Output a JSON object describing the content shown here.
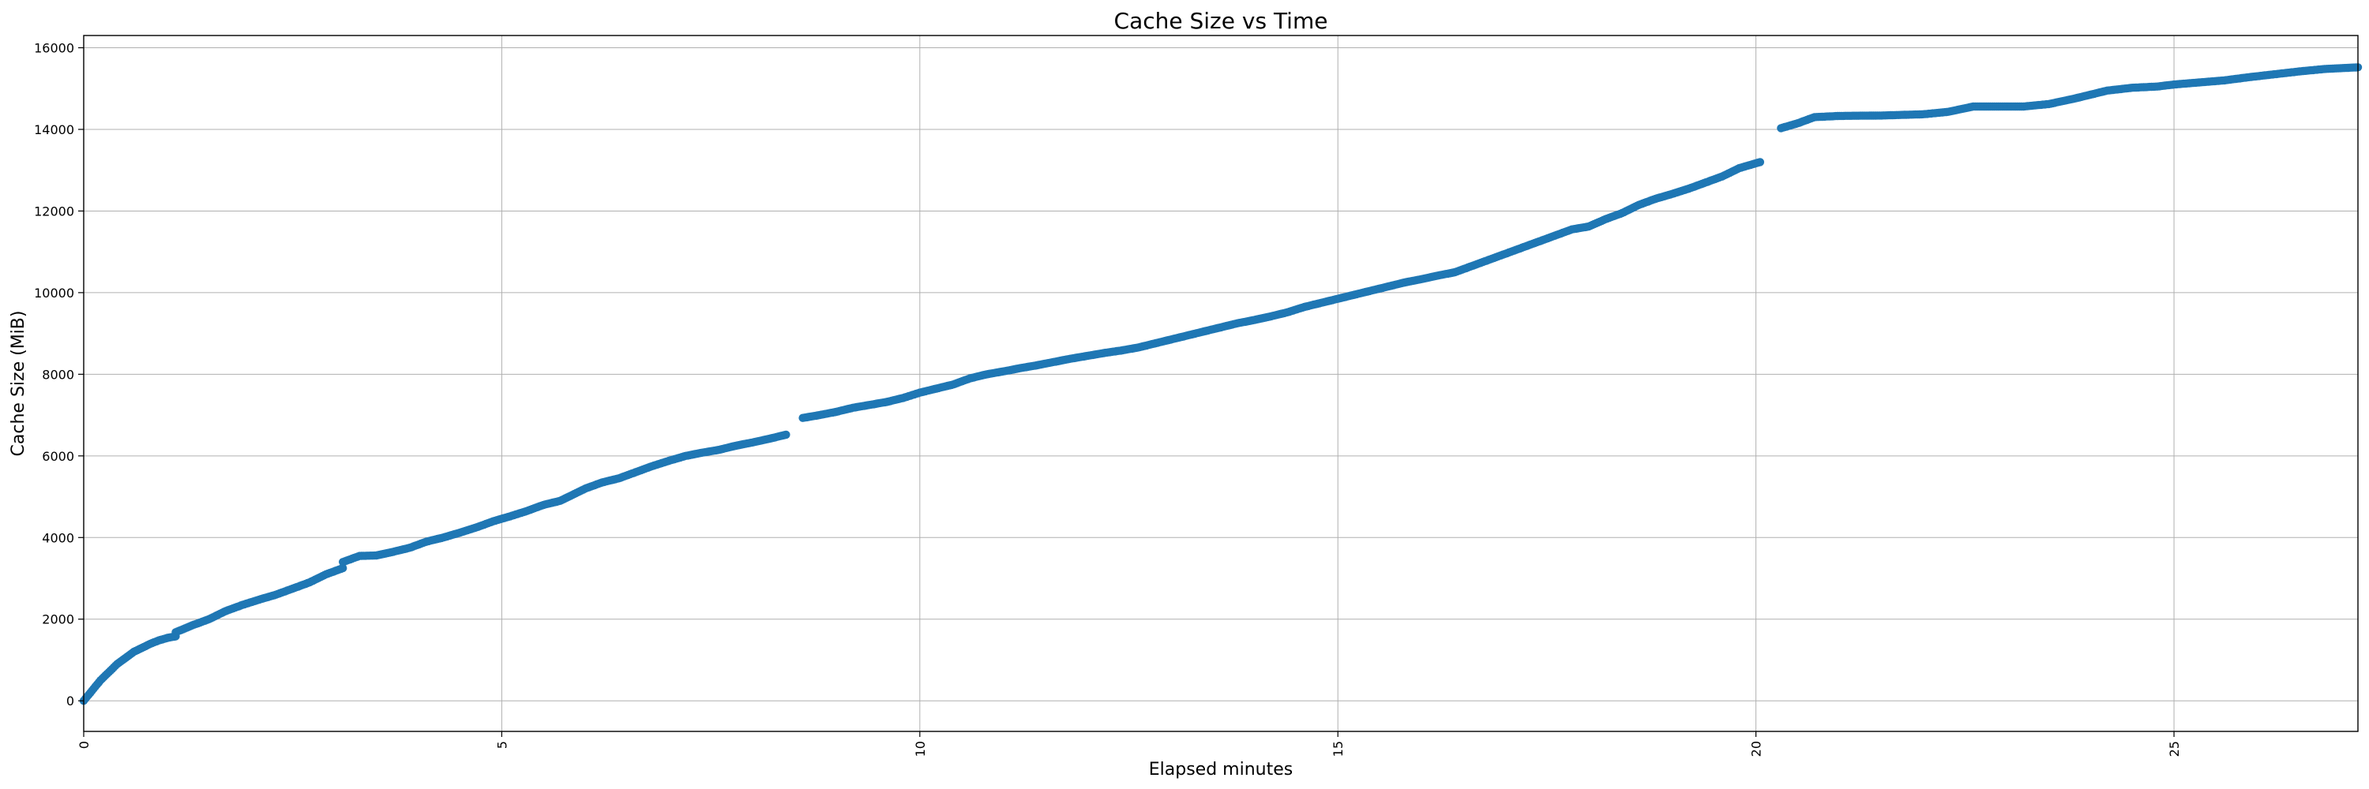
{
  "chart_data": {
    "type": "scatter",
    "title": "Cache Size vs Time",
    "xlabel": "Elapsed minutes",
    "ylabel": "Cache Size (MiB)",
    "xlim": [
      0,
      27.2
    ],
    "ylim": [
      -750,
      16300
    ],
    "xticks": [
      0,
      5,
      10,
      15,
      20,
      25
    ],
    "yticks": [
      0,
      2000,
      4000,
      6000,
      8000,
      10000,
      12000,
      14000,
      16000
    ],
    "grid": true,
    "color": "#1f77b4",
    "segments": [
      {
        "x": [
          0,
          0.1,
          0.2,
          0.3,
          0.4,
          0.5,
          0.6,
          0.7,
          0.8,
          0.9,
          1.0,
          1.1
        ],
        "y": [
          0,
          250,
          500,
          700,
          900,
          1050,
          1200,
          1300,
          1400,
          1480,
          1540,
          1580
        ]
      },
      {
        "x": [
          1.1,
          1.3,
          1.5,
          1.7,
          1.9,
          2.1,
          2.3,
          2.5,
          2.7,
          2.9,
          3.1
        ],
        "y": [
          1680,
          1850,
          2000,
          2200,
          2350,
          2480,
          2600,
          2750,
          2900,
          3100,
          3250
        ]
      },
      {
        "x": [
          3.1,
          3.3,
          3.5,
          3.7,
          3.9,
          4.1,
          4.3,
          4.5,
          4.7,
          4.9,
          5.1,
          5.3,
          5.5,
          5.7,
          5.8,
          6.0,
          6.2,
          6.4,
          6.6,
          6.8,
          7.0,
          7.2,
          7.4,
          7.6,
          7.8,
          8.0,
          8.2,
          8.4
        ],
        "y": [
          3400,
          3550,
          3560,
          3650,
          3750,
          3900,
          4000,
          4120,
          4250,
          4400,
          4520,
          4650,
          4800,
          4900,
          5000,
          5200,
          5350,
          5450,
          5600,
          5750,
          5880,
          6000,
          6080,
          6150,
          6250,
          6330,
          6420,
          6520
        ]
      },
      {
        "x": [
          8.6,
          8.8,
          9.0,
          9.2,
          9.4,
          9.6,
          9.8,
          10.0,
          10.2,
          10.4,
          10.6,
          10.8,
          11.0,
          11.2,
          11.4,
          11.6,
          11.8,
          12.0,
          12.2,
          12.4,
          12.6,
          12.8,
          13.0,
          13.2,
          13.4,
          13.6,
          13.8,
          14.0,
          14.2,
          14.4,
          14.6,
          14.8,
          15.0,
          15.2,
          15.4,
          15.6,
          15.8,
          16.0,
          16.2,
          16.4,
          16.6,
          16.8,
          17.0,
          17.2,
          17.4,
          17.6,
          17.8,
          18.0,
          18.2,
          18.4,
          18.6,
          18.8,
          19.0,
          19.2,
          19.4,
          19.6,
          19.8,
          20.05
        ],
        "y": [
          6930,
          7000,
          7080,
          7180,
          7250,
          7320,
          7420,
          7550,
          7650,
          7750,
          7900,
          8000,
          8070,
          8150,
          8220,
          8300,
          8380,
          8450,
          8520,
          8580,
          8650,
          8750,
          8850,
          8950,
          9050,
          9150,
          9250,
          9330,
          9420,
          9520,
          9650,
          9750,
          9850,
          9950,
          10050,
          10150,
          10250,
          10330,
          10420,
          10500,
          10650,
          10800,
          10950,
          11100,
          11250,
          11400,
          11550,
          11620,
          11800,
          11950,
          12150,
          12300,
          12420,
          12550,
          12700,
          12850,
          13050,
          13200
        ]
      },
      {
        "x": [
          20.3,
          20.5,
          20.7,
          21.0,
          21.5,
          22.0,
          22.3,
          22.6,
          22.9,
          23.2,
          23.5,
          23.8,
          24.0,
          24.2,
          24.5,
          24.8,
          25.0,
          25.3,
          25.6,
          25.9,
          26.2,
          26.5,
          26.8,
          27.2
        ],
        "y": [
          14030,
          14150,
          14300,
          14330,
          14340,
          14370,
          14430,
          14560,
          14560,
          14560,
          14620,
          14750,
          14850,
          14950,
          15020,
          15050,
          15100,
          15150,
          15200,
          15280,
          15350,
          15420,
          15480,
          15520
        ]
      }
    ]
  }
}
